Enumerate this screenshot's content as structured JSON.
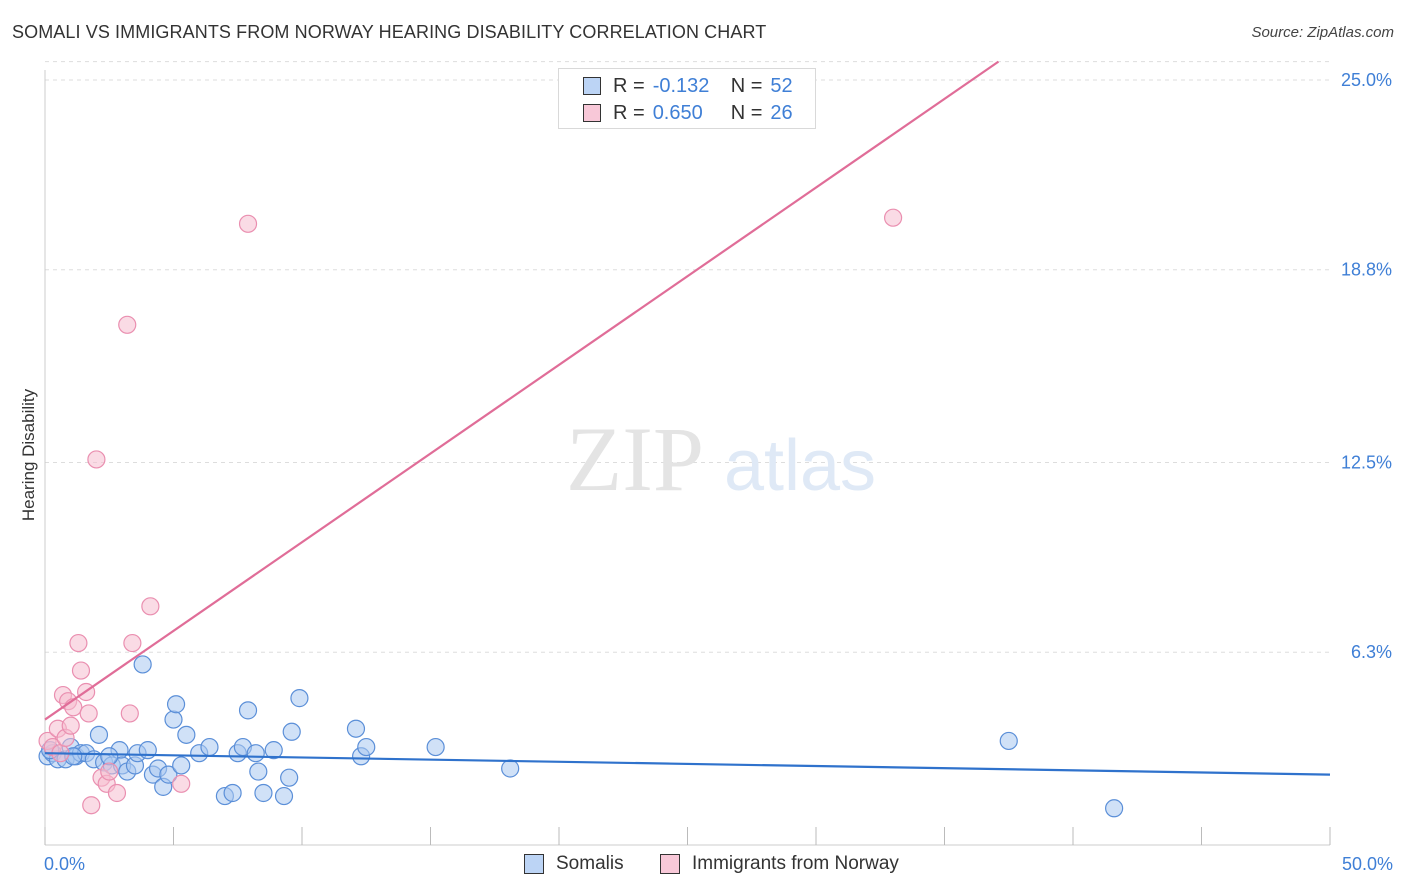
{
  "title": "SOMALI VS IMMIGRANTS FROM NORWAY HEARING DISABILITY CORRELATION CHART",
  "source": "Source: ZipAtlas.com",
  "watermark": {
    "zip": "ZIP",
    "atlas": "atlas"
  },
  "legend": {
    "r_label": "R =",
    "n_label": "N =",
    "entries": [
      {
        "r": "-0.132",
        "n": "52"
      },
      {
        "r": "0.650",
        "n": "26"
      }
    ]
  },
  "colors": {
    "somali_fill": "#a9c8f0",
    "somali_stroke": "#5b8fd8",
    "somali_line": "#2f72cc",
    "norway_fill": "#f6bdd0",
    "norway_stroke": "#ea8fb0",
    "norway_line": "#e06d98",
    "tick_label": "#3f7fd6",
    "grid": "#dddddd"
  },
  "chart_data": {
    "type": "scatter",
    "title": "SOMALI VS IMMIGRANTS FROM NORWAY HEARING DISABILITY CORRELATION CHART",
    "xlabel": "",
    "ylabel": "Hearing Disability",
    "xlim": [
      0,
      50
    ],
    "ylim": [
      0,
      25.6
    ],
    "y_ticks": [
      6.3,
      12.5,
      18.8,
      25.0
    ],
    "y_tick_labels": [
      "6.3%",
      "12.5%",
      "18.8%",
      "25.0%"
    ],
    "x_tick_labels": [
      "0.0%",
      "50.0%"
    ],
    "grid": true,
    "legend_position": "bottom",
    "series": [
      {
        "name": "Somalis",
        "r": -0.132,
        "n": 52,
        "trend": {
          "x0": 0,
          "y0": 3.0,
          "x1": 50,
          "y1": 2.3
        },
        "points": [
          [
            0.1,
            2.9
          ],
          [
            0.3,
            3.0
          ],
          [
            0.5,
            2.8
          ],
          [
            0.8,
            2.8
          ],
          [
            1.0,
            3.2
          ],
          [
            1.2,
            2.9
          ],
          [
            1.4,
            3.0
          ],
          [
            1.6,
            3.0
          ],
          [
            1.9,
            2.8
          ],
          [
            2.1,
            3.6
          ],
          [
            2.3,
            2.7
          ],
          [
            2.6,
            2.6
          ],
          [
            2.9,
            3.1
          ],
          [
            3.0,
            2.6
          ],
          [
            3.2,
            2.4
          ],
          [
            3.5,
            2.6
          ],
          [
            3.6,
            3.0
          ],
          [
            3.8,
            5.9
          ],
          [
            4.0,
            3.1
          ],
          [
            4.2,
            2.3
          ],
          [
            4.4,
            2.5
          ],
          [
            4.6,
            1.9
          ],
          [
            4.8,
            2.3
          ],
          [
            5.0,
            4.1
          ],
          [
            5.1,
            4.6
          ],
          [
            5.3,
            2.6
          ],
          [
            5.5,
            3.6
          ],
          [
            6.0,
            3.0
          ],
          [
            6.4,
            3.2
          ],
          [
            7.0,
            1.6
          ],
          [
            7.3,
            1.7
          ],
          [
            7.5,
            3.0
          ],
          [
            7.7,
            3.2
          ],
          [
            7.9,
            4.4
          ],
          [
            8.2,
            3.0
          ],
          [
            8.3,
            2.4
          ],
          [
            8.5,
            1.7
          ],
          [
            8.9,
            3.1
          ],
          [
            9.3,
            1.6
          ],
          [
            9.5,
            2.2
          ],
          [
            9.6,
            3.7
          ],
          [
            9.9,
            4.8
          ],
          [
            12.1,
            3.8
          ],
          [
            12.3,
            2.9
          ],
          [
            12.5,
            3.2
          ],
          [
            15.2,
            3.2
          ],
          [
            18.1,
            2.5
          ],
          [
            37.5,
            3.4
          ],
          [
            41.6,
            1.2
          ],
          [
            0.2,
            3.1
          ],
          [
            1.1,
            2.9
          ],
          [
            2.5,
            2.9
          ]
        ]
      },
      {
        "name": "Immigrants from Norway",
        "r": 0.65,
        "n": 26,
        "trend": {
          "x0": 0,
          "y0": 4.1,
          "x1": 37.1,
          "y1": 25.6
        },
        "points": [
          [
            0.1,
            3.4
          ],
          [
            0.3,
            3.2
          ],
          [
            0.5,
            3.8
          ],
          [
            0.6,
            3.0
          ],
          [
            0.7,
            4.9
          ],
          [
            0.8,
            3.5
          ],
          [
            0.9,
            4.7
          ],
          [
            1.0,
            3.9
          ],
          [
            1.1,
            4.5
          ],
          [
            1.3,
            6.6
          ],
          [
            1.4,
            5.7
          ],
          [
            1.6,
            5.0
          ],
          [
            1.7,
            4.3
          ],
          [
            1.8,
            1.3
          ],
          [
            2.0,
            12.6
          ],
          [
            2.2,
            2.2
          ],
          [
            2.4,
            2.0
          ],
          [
            2.5,
            2.4
          ],
          [
            2.8,
            1.7
          ],
          [
            3.2,
            17.0
          ],
          [
            3.3,
            4.3
          ],
          [
            3.4,
            6.6
          ],
          [
            4.1,
            7.8
          ],
          [
            5.3,
            2.0
          ],
          [
            7.9,
            20.3
          ],
          [
            33.0,
            20.5
          ]
        ]
      }
    ]
  }
}
